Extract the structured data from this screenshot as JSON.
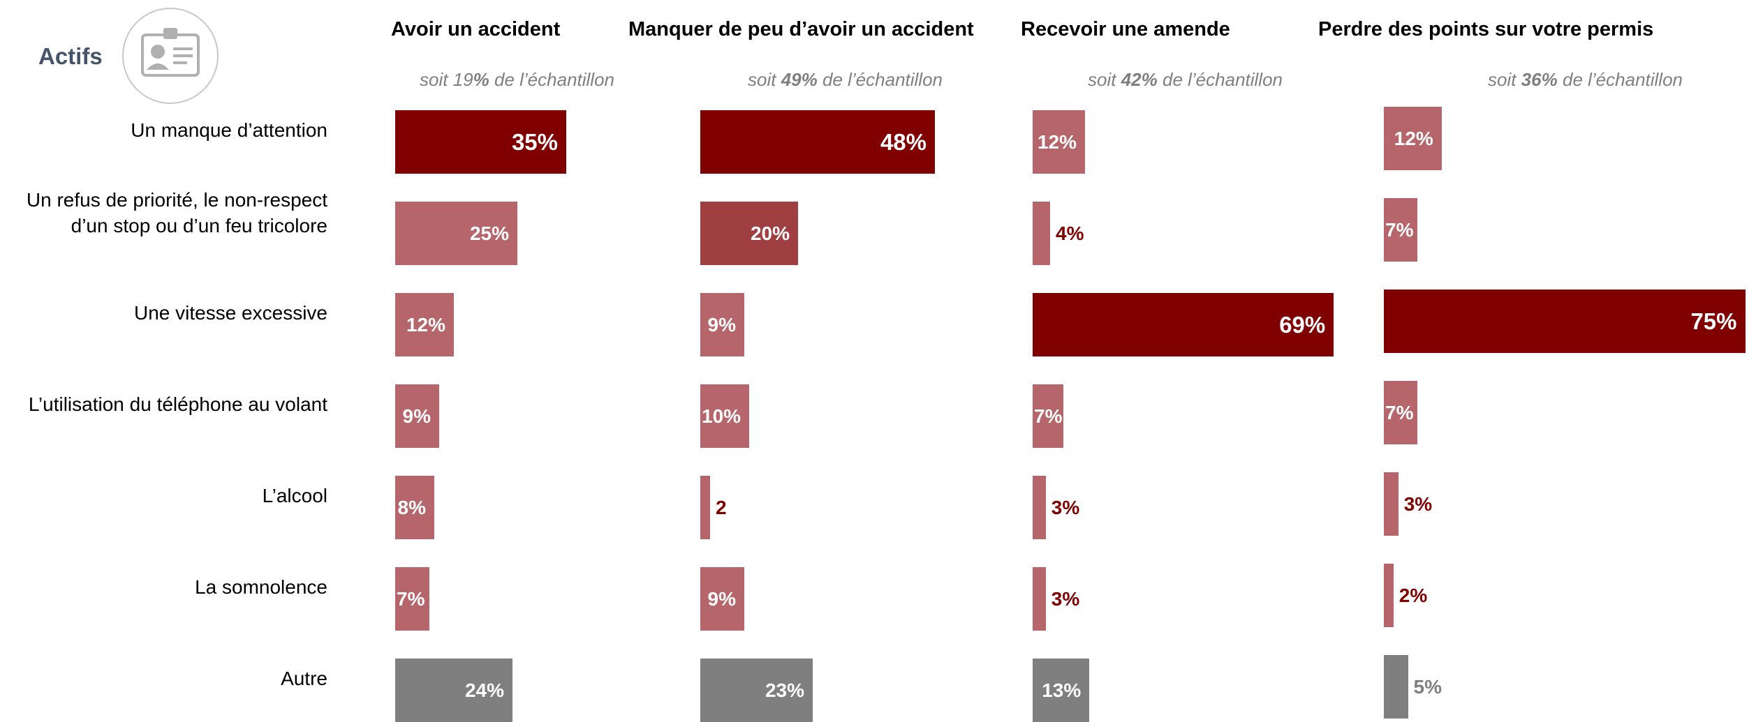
{
  "segment": {
    "label": "Actifs",
    "icon": "id-card-person-icon"
  },
  "colors": {
    "highlight": "#800000",
    "secondary": "#a03f42",
    "default": "#b6666a",
    "other": "#7f7f7f",
    "outside_label": "#800000",
    "outside_label_other": "#7f7f7f"
  },
  "chart_data": {
    "type": "bar",
    "orientation": "horizontal",
    "categories": [
      "Un manque d’attention",
      "Un refus de priorité, le non-respect d’un stop ou d’un feu tricolore",
      "Une vitesse excessive",
      "L’utilisation du téléphone au volant",
      "L’alcool",
      "La somnolence",
      "Autre"
    ],
    "category_lines": [
      [
        "Un manque d’attention"
      ],
      [
        "Un refus de priorité, le non-respect",
        "d’un stop ou d’un feu tricolore"
      ],
      [
        "Une vitesse excessive"
      ],
      [
        "L’utilisation du téléphone au volant"
      ],
      [
        "L’alcool"
      ],
      [
        "La somnolence"
      ],
      [
        "Autre"
      ]
    ],
    "unit": "%",
    "series": [
      {
        "name": "Avoir un accident",
        "sub_prefix": "soit 19",
        "sub_bold": "%",
        "sub_suffix": " de l’échantillon",
        "values": [
          35,
          25,
          12,
          9,
          8,
          7,
          24
        ],
        "labels": [
          "35%",
          "25%",
          "12%",
          "9%",
          "8%",
          "7%",
          "24%"
        ],
        "fills": [
          "highlight",
          "default",
          "default",
          "default",
          "default",
          "default",
          "other"
        ]
      },
      {
        "name": "Manquer de peu d’avoir un accident",
        "sub_prefix": "soit ",
        "sub_bold": "49%",
        "sub_suffix": " de l’échantillon",
        "values": [
          48,
          20,
          9,
          10,
          2,
          9,
          23
        ],
        "labels": [
          "48%",
          "20%",
          "9%",
          "10%",
          "2",
          "9%",
          "23%"
        ],
        "fills": [
          "highlight",
          "secondary",
          "default",
          "default",
          "default",
          "default",
          "other"
        ]
      },
      {
        "name": "Recevoir une amende",
        "sub_prefix": "soit ",
        "sub_bold": "42%",
        "sub_suffix": " de l’échantillon",
        "values": [
          12,
          4,
          69,
          7,
          3,
          3,
          13
        ],
        "labels": [
          "12%",
          "4%",
          "69%",
          "7%",
          "3%",
          "3%",
          "13%"
        ],
        "fills": [
          "default",
          "default",
          "highlight",
          "default",
          "default",
          "default",
          "other"
        ]
      },
      {
        "name": "Perdre des points sur votre permis",
        "sub_prefix": "soit ",
        "sub_bold": "36%",
        "sub_suffix": " de l’échantillon",
        "values": [
          12,
          7,
          75,
          7,
          3,
          2,
          5
        ],
        "labels": [
          "12%",
          "7%",
          "75%",
          "7%",
          "3%",
          "2%",
          "5%"
        ],
        "fills": [
          "default",
          "default",
          "highlight",
          "default",
          "default",
          "default",
          "other"
        ]
      }
    ]
  }
}
